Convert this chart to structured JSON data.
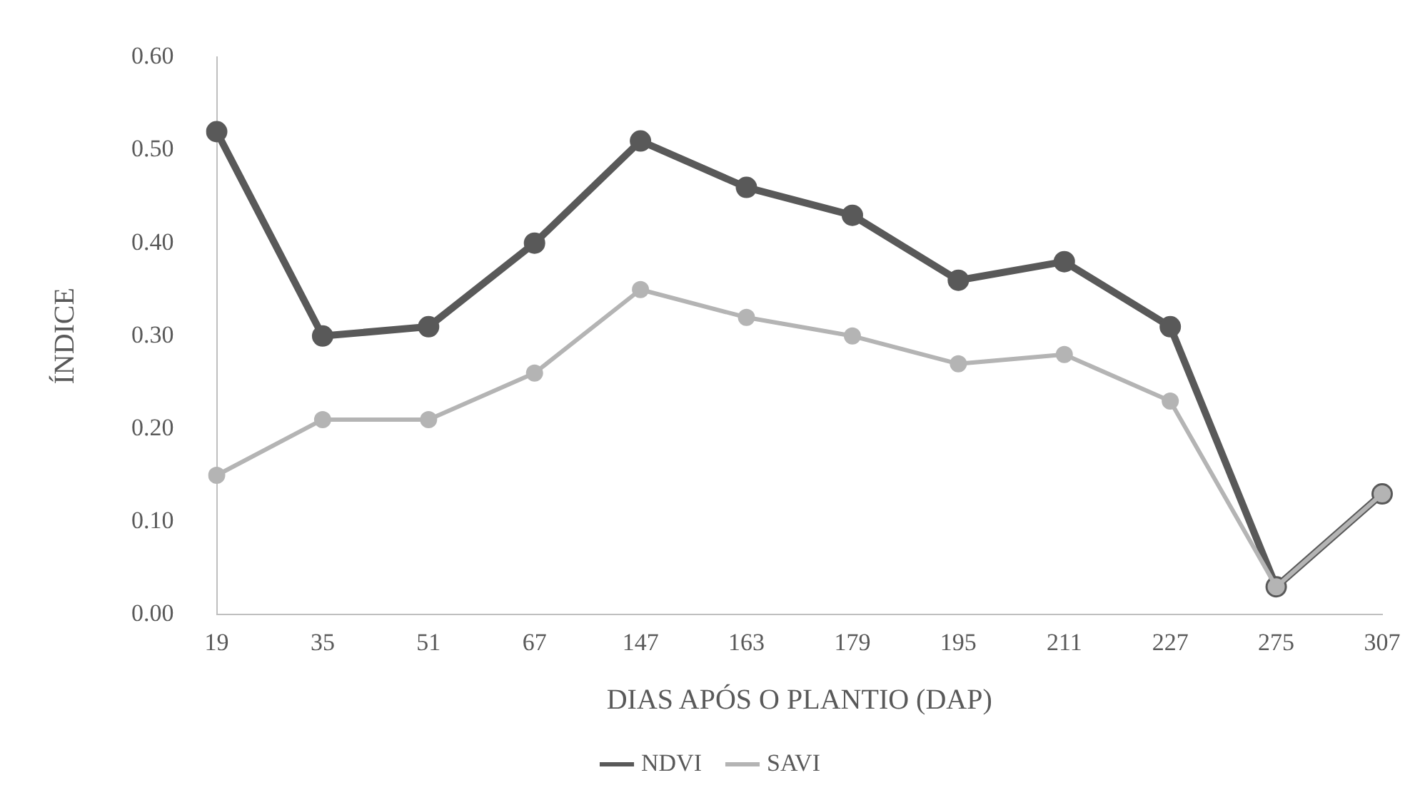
{
  "chart_data": {
    "type": "line",
    "xlabel": "DIAS APÓS O PLANTIO (DAP)",
    "ylabel": "ÍNDICE",
    "categories": [
      "19",
      "35",
      "51",
      "67",
      "147",
      "163",
      "179",
      "195",
      "211",
      "227",
      "275",
      "307"
    ],
    "series": [
      {
        "name": "NDVI",
        "color": "#595959",
        "values": [
          0.52,
          0.3,
          0.31,
          0.4,
          0.51,
          0.46,
          0.43,
          0.36,
          0.38,
          0.31,
          0.03,
          0.13
        ]
      },
      {
        "name": "SAVI",
        "color": "#b4b4b4",
        "values": [
          0.15,
          0.21,
          0.21,
          0.26,
          0.35,
          0.32,
          0.3,
          0.27,
          0.28,
          0.23,
          0.03,
          0.13
        ]
      }
    ],
    "ylim": [
      0,
      0.6
    ],
    "yticks": [
      {
        "value": 0,
        "label": "0.00"
      },
      {
        "value": 0.1,
        "label": "0.10"
      },
      {
        "value": 0.2,
        "label": "0.20"
      },
      {
        "value": 0.3,
        "label": "0.30"
      },
      {
        "value": 0.4,
        "label": "0.40"
      },
      {
        "value": 0.5,
        "label": "0.50"
      },
      {
        "value": 0.6,
        "label": "0.60"
      }
    ],
    "grid": false,
    "legend": "bottom",
    "marker": "circle",
    "line_style": "solid"
  }
}
